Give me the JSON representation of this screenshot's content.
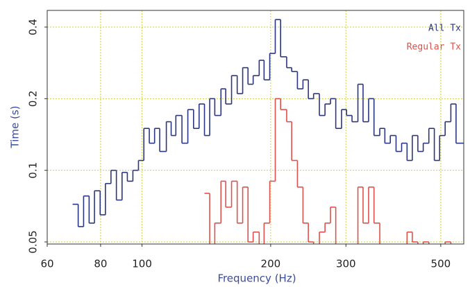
{
  "chart_data": {
    "type": "step",
    "x_label": "Frequency (Hz)",
    "y_label": "Time (s)",
    "x_log": true,
    "y_log": true,
    "grid": true,
    "legend": "upper right",
    "xlim": [
      60,
      566
    ],
    "ylim": [
      0.049,
      0.47
    ],
    "xticks": [
      60,
      80,
      100,
      200,
      300,
      500
    ],
    "yticks": [
      0.05,
      0.1,
      0.2,
      0.4
    ],
    "x": [
      68.8,
      70.9,
      73.0,
      75.2,
      77.4,
      79.8,
      82.1,
      84.6,
      87.1,
      89.8,
      92.4,
      95.2,
      98.1,
      101,
      104,
      107,
      110,
      114,
      117,
      120,
      124,
      128,
      132,
      136,
      140,
      144,
      148,
      153,
      157,
      162,
      167,
      172,
      177,
      182,
      188,
      193,
      199,
      205,
      211,
      218,
      224,
      231,
      238,
      245,
      252,
      260,
      268,
      276,
      284,
      293,
      301,
      310,
      320,
      329,
      339,
      349,
      360,
      370,
      381,
      393,
      405,
      417,
      429,
      442,
      455,
      469,
      483,
      497,
      512,
      528,
      543
    ],
    "series": [
      {
        "name": "All Tx",
        "color": "#2a3580",
        "values": [
          0.072,
          0.058,
          0.078,
          0.06,
          0.082,
          0.065,
          0.088,
          0.1,
          0.075,
          0.098,
          0.09,
          0.1,
          0.11,
          0.15,
          0.13,
          0.15,
          0.12,
          0.16,
          0.14,
          0.17,
          0.13,
          0.18,
          0.15,
          0.19,
          0.14,
          0.2,
          0.17,
          0.22,
          0.19,
          0.25,
          0.21,
          0.27,
          0.23,
          0.25,
          0.29,
          0.24,
          0.31,
          0.43,
          0.3,
          0.27,
          0.26,
          0.22,
          0.24,
          0.2,
          0.21,
          0.17,
          0.19,
          0.2,
          0.15,
          0.18,
          0.17,
          0.16,
          0.23,
          0.16,
          0.2,
          0.14,
          0.15,
          0.13,
          0.14,
          0.12,
          0.13,
          0.11,
          0.14,
          0.12,
          0.13,
          0.15,
          0.11,
          0.14,
          0.16,
          0.19,
          0.13
        ]
      },
      {
        "name": "Regular Tx",
        "color": "#e0504a",
        "values": [
          null,
          null,
          null,
          null,
          null,
          null,
          null,
          null,
          null,
          null,
          null,
          null,
          null,
          null,
          null,
          null,
          null,
          null,
          null,
          null,
          null,
          null,
          null,
          null,
          0.08,
          0.045,
          0.06,
          0.09,
          0.07,
          0.09,
          0.06,
          0.085,
          0.05,
          0.055,
          0.048,
          0.06,
          0.09,
          0.2,
          0.18,
          0.16,
          0.11,
          0.085,
          0.06,
          0.05,
          0.045,
          0.055,
          0.06,
          0.07,
          0.045,
          0.045,
          0.045,
          0.045,
          0.085,
          0.06,
          0.085,
          0.06,
          0.045,
          0.045,
          0.045,
          0.045,
          0.045,
          0.055,
          0.05,
          0.045,
          0.05,
          0.045,
          0.045,
          0.045,
          0.05,
          0.045,
          null
        ]
      }
    ]
  }
}
